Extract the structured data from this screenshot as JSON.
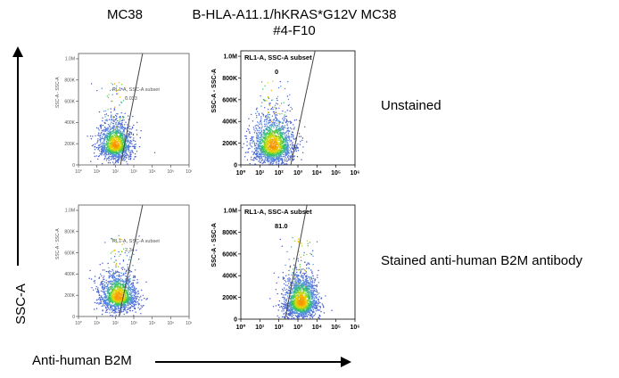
{
  "columns": [
    {
      "title_line1": "MC38",
      "title_line2": ""
    },
    {
      "title_line1": "B-HLA-A11.1/hKRAS*G12V MC38",
      "title_line2": "#4-F10"
    }
  ],
  "rows": [
    {
      "label": "Unstained"
    },
    {
      "label": "Stained anti-human B2M antibody"
    }
  ],
  "y_axis_title": "SSC-A",
  "x_axis_title": "Anti-human B2M",
  "colors": {
    "density_low": "#3b4cc0",
    "density_mid": "#22c84a",
    "density_high": "#f2e600",
    "gate": "#444444"
  },
  "chart_data": [
    {
      "type": "scatter",
      "row": 0,
      "col": 0,
      "style": "small",
      "xlabel": "",
      "ylabel": "SSC-A - SSC-A",
      "xscale": "log",
      "xlim": [
        1,
        1000000
      ],
      "x_ticks": [
        "10⁰",
        "10¹",
        "10²",
        "10³",
        "10⁴",
        "10⁵",
        "10⁶"
      ],
      "ylim": [
        0,
        1050000
      ],
      "y_ticks": [
        {
          "v": 0,
          "t": "0"
        },
        {
          "v": 200000,
          "t": "200K"
        },
        {
          "v": 400000,
          "t": "400K"
        },
        {
          "v": 600000,
          "t": "600K"
        },
        {
          "v": 800000,
          "t": "800K"
        },
        {
          "v": 1000000,
          "t": "1.0M"
        }
      ],
      "gate_name": "RL1-A, SSC-A subset",
      "gate_value": "0.033",
      "gate_line": [
        [
          180,
          -20000
        ],
        [
          3000,
          1050000
        ]
      ],
      "cluster": {
        "x_center": 100,
        "x_spread_decades": 0.45,
        "y_center": 180000,
        "y_spread": 90000,
        "n": 1500
      }
    },
    {
      "type": "scatter",
      "row": 0,
      "col": 1,
      "style": "large",
      "xlabel": "",
      "ylabel": "SSC-A - SSC-A",
      "xscale": "log",
      "xlim": [
        1,
        1000000
      ],
      "x_ticks": [
        "10⁰",
        "10¹",
        "10²",
        "10³",
        "10⁴",
        "10⁵",
        "10⁶"
      ],
      "ylim": [
        0,
        1050000
      ],
      "y_ticks": [
        {
          "v": 0,
          "t": "0"
        },
        {
          "v": 200000,
          "t": "200K"
        },
        {
          "v": 400000,
          "t": "400K"
        },
        {
          "v": 600000,
          "t": "600K"
        },
        {
          "v": 800000,
          "t": "800K"
        },
        {
          "v": 1000000,
          "t": "1.0M"
        }
      ],
      "gate_name": "RL1-A, SSC-A subset",
      "gate_value": "0",
      "gate_line": [
        [
          400,
          -20000
        ],
        [
          8000,
          1050000
        ]
      ],
      "cluster": {
        "x_center": 50,
        "x_spread_decades": 0.55,
        "y_center": 170000,
        "y_spread": 110000,
        "n": 1800
      }
    },
    {
      "type": "scatter",
      "row": 1,
      "col": 0,
      "style": "small",
      "xlabel": "",
      "ylabel": "SSC-A - SSC-A",
      "xscale": "log",
      "xlim": [
        1,
        1000000
      ],
      "x_ticks": [
        "10⁰",
        "10¹",
        "10²",
        "10³",
        "10⁴",
        "10⁵",
        "10⁶"
      ],
      "ylim": [
        0,
        1050000
      ],
      "y_ticks": [
        {
          "v": 0,
          "t": "0"
        },
        {
          "v": 200000,
          "t": "200K"
        },
        {
          "v": 400000,
          "t": "400K"
        },
        {
          "v": 600000,
          "t": "600K"
        },
        {
          "v": 800000,
          "t": "800K"
        },
        {
          "v": 1000000,
          "t": "1.0M"
        }
      ],
      "gate_name": "RL1-A, SSC-A subset",
      "gate_value": "2.34",
      "gate_line": [
        [
          150,
          -20000
        ],
        [
          3000,
          1050000
        ]
      ],
      "cluster": {
        "x_center": 150,
        "x_spread_decades": 0.5,
        "y_center": 180000,
        "y_spread": 90000,
        "n": 1500
      }
    },
    {
      "type": "scatter",
      "row": 1,
      "col": 1,
      "style": "large",
      "xlabel": "",
      "ylabel": "SSC-A - SSC-A",
      "xscale": "log",
      "xlim": [
        1,
        1000000
      ],
      "x_ticks": [
        "10⁰",
        "10¹",
        "10²",
        "10³",
        "10⁴",
        "10⁵",
        "10⁶"
      ],
      "ylim": [
        0,
        1050000
      ],
      "y_ticks": [
        {
          "v": 0,
          "t": "0"
        },
        {
          "v": 200000,
          "t": "200K"
        },
        {
          "v": 400000,
          "t": "400K"
        },
        {
          "v": 600000,
          "t": "600K"
        },
        {
          "v": 800000,
          "t": "800K"
        },
        {
          "v": 1000000,
          "t": "1.0M"
        }
      ],
      "gate_name": "RL1-A, SSC-A subset",
      "gate_value": "81.0",
      "gate_line": [
        [
          200,
          -20000
        ],
        [
          3000,
          1050000
        ]
      ],
      "cluster": {
        "x_center": 1500,
        "x_spread_decades": 0.45,
        "y_center": 150000,
        "y_spread": 100000,
        "n": 1800
      }
    }
  ]
}
